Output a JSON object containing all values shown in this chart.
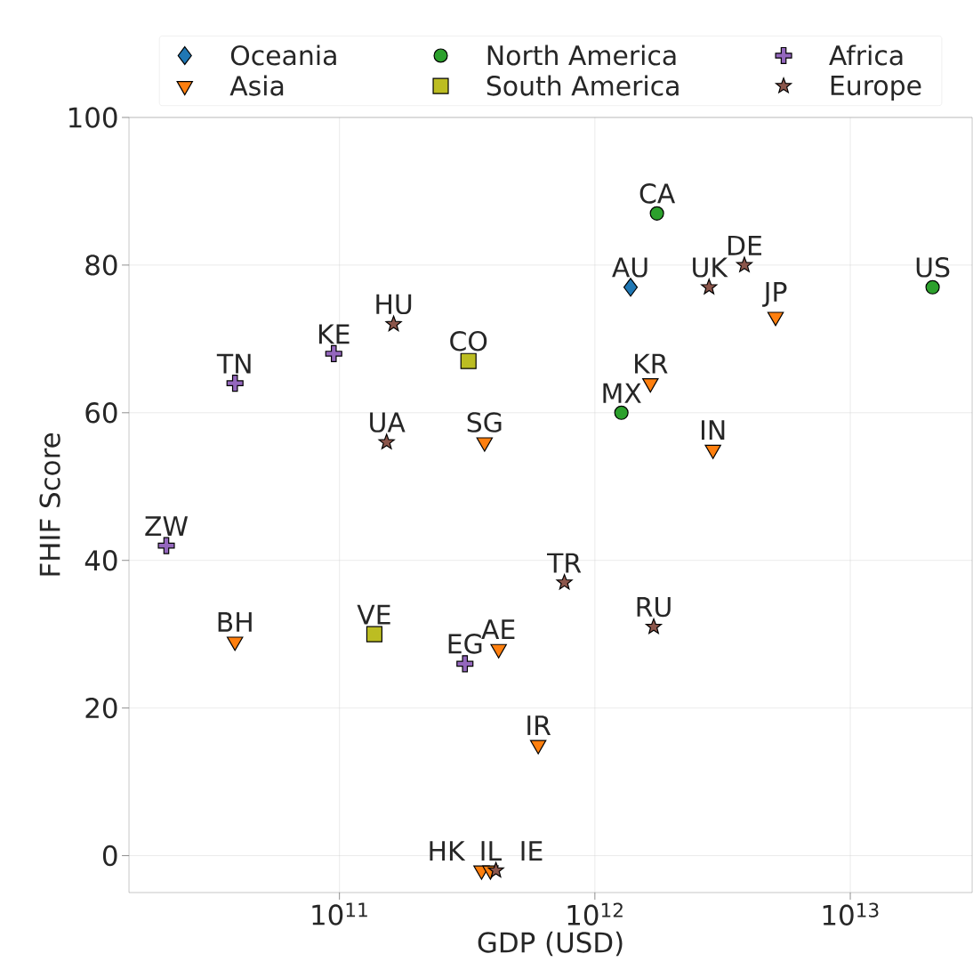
{
  "chart_data": {
    "type": "scatter",
    "xlabel": "GDP (USD)",
    "ylabel": "FHIF Score",
    "log": "x",
    "grid": true,
    "legend": "top",
    "xlim": [
      15000000000.0,
      30000000000000.0
    ],
    "ylim": [
      -5,
      100
    ],
    "xticks": [
      {
        "value": 100000000000.0,
        "label": "10$^{11}$"
      },
      {
        "value": 1000000000000.0,
        "label": "10$^{12}$"
      },
      {
        "value": 10000000000000.0,
        "label": "10$^{13}$"
      }
    ],
    "yticks": [
      0,
      20,
      40,
      60,
      80,
      100
    ],
    "series": [
      {
        "name": "Oceania",
        "color": "#1f77b4",
        "marker": "diamond",
        "x": [
          1380000000000.0
        ],
        "values": [
          77
        ]
      },
      {
        "name": "Asia",
        "color": "#ff7f0e",
        "marker": "triangle",
        "x": [
          5100000000000.0,
          1650000000000.0,
          2900000000000.0,
          370000000000.0,
          39000000000.0,
          420000000000.0,
          600000000000.0,
          360000000000.0,
          390000000000.0
        ],
        "values": [
          73,
          64,
          55,
          56,
          29,
          28,
          15,
          -2,
          -2
        ]
      },
      {
        "name": "North America",
        "color": "#2ca02c",
        "marker": "circle",
        "x": [
          1750000000000.0,
          21000000000000.0,
          1270000000000.0
        ],
        "values": [
          87,
          77,
          60
        ]
      },
      {
        "name": "South America",
        "color": "#bcbd22",
        "marker": "square",
        "x": [
          320000000000.0,
          137000000000.0
        ],
        "values": [
          67,
          30
        ]
      },
      {
        "name": "Africa",
        "color": "#9467bd",
        "marker": "cross",
        "x": [
          39000000000.0,
          95000000000.0,
          21000000000.0,
          310000000000.0
        ],
        "values": [
          64,
          68,
          42,
          26
        ]
      },
      {
        "name": "Europe",
        "color": "#8c564b",
        "marker": "star",
        "x": [
          163000000000.0,
          153000000000.0,
          760000000000.0,
          1700000000000.0,
          2800000000000.0,
          3850000000000.0,
          410000000000.0
        ],
        "values": [
          72,
          56,
          37,
          31,
          77,
          80,
          -2
        ]
      }
    ],
    "annotations": [
      {
        "text": "AU",
        "x": 1380000000000.0,
        "y": 77
      },
      {
        "text": "JP",
        "x": 5100000000000.0,
        "y": 73
      },
      {
        "text": "KR",
        "x": 1650000000000.0,
        "y": 64
      },
      {
        "text": "IN",
        "x": 2900000000000.0,
        "y": 55
      },
      {
        "text": "SG",
        "x": 370000000000.0,
        "y": 56
      },
      {
        "text": "BH",
        "x": 39000000000.0,
        "y": 29
      },
      {
        "text": "AE",
        "x": 420000000000.0,
        "y": 28
      },
      {
        "text": "IR",
        "x": 600000000000.0,
        "y": 15
      },
      {
        "text": "HK",
        "x": 360000000000.0,
        "y": -2
      },
      {
        "text": "IL",
        "x": 390000000000.0,
        "y": -2
      },
      {
        "text": "CA",
        "x": 1750000000000.0,
        "y": 87
      },
      {
        "text": "US",
        "x": 21000000000000.0,
        "y": 77
      },
      {
        "text": "MX",
        "x": 1270000000000.0,
        "y": 60
      },
      {
        "text": "CO",
        "x": 320000000000.0,
        "y": 67
      },
      {
        "text": "VE",
        "x": 137000000000.0,
        "y": 30
      },
      {
        "text": "TN",
        "x": 39000000000.0,
        "y": 64
      },
      {
        "text": "KE",
        "x": 95000000000.0,
        "y": 68
      },
      {
        "text": "ZW",
        "x": 21000000000.0,
        "y": 42
      },
      {
        "text": "EG",
        "x": 310000000000.0,
        "y": 26
      },
      {
        "text": "HU",
        "x": 163000000000.0,
        "y": 72
      },
      {
        "text": "UA",
        "x": 153000000000.0,
        "y": 56
      },
      {
        "text": "TR",
        "x": 760000000000.0,
        "y": 37
      },
      {
        "text": "RU",
        "x": 1700000000000.0,
        "y": 31
      },
      {
        "text": "UK",
        "x": 2800000000000.0,
        "y": 77
      },
      {
        "text": "DE",
        "x": 3850000000000.0,
        "y": 80
      },
      {
        "text": "IE",
        "x": 410000000000.0,
        "y": -2
      }
    ]
  }
}
